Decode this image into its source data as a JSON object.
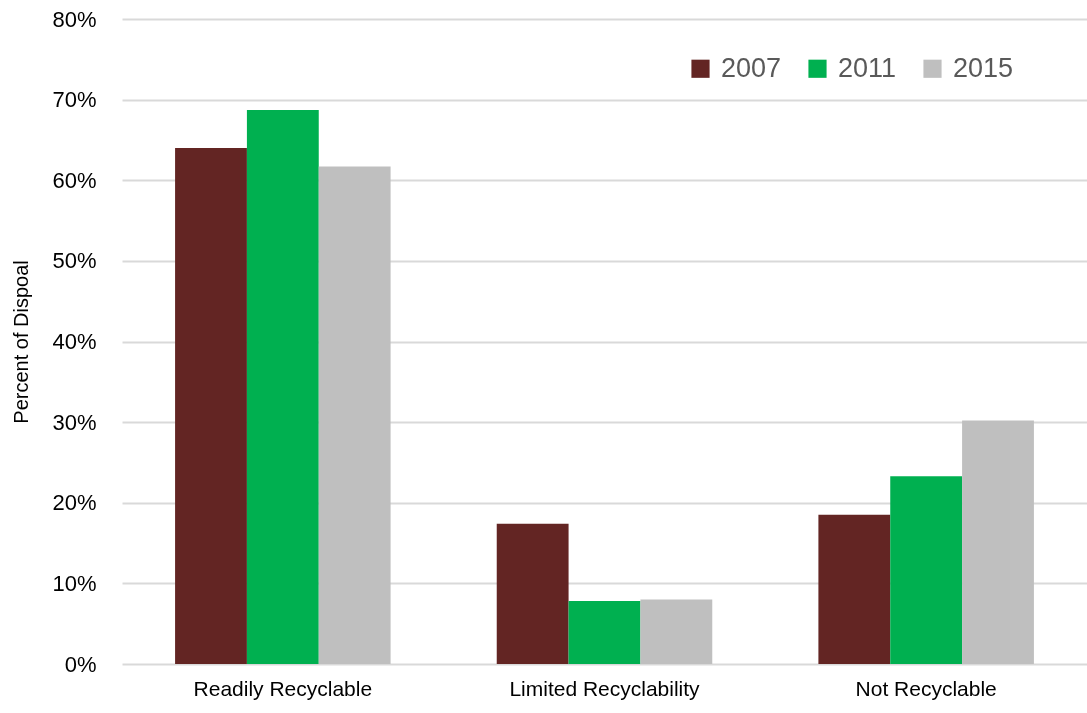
{
  "chart_data": {
    "type": "bar",
    "ylabel": "Percent of Dispoal",
    "categories": [
      "Readily Recyclable",
      "Limited Recyclability",
      "Not Recyclable"
    ],
    "series": [
      {
        "name": "2007",
        "color": "#632523",
        "values": [
          64.0,
          17.4,
          18.5
        ]
      },
      {
        "name": "2011",
        "color": "#00b050",
        "values": [
          68.7,
          7.8,
          23.3
        ]
      },
      {
        "name": "2015",
        "color": "#bfbfbf",
        "values": [
          61.7,
          8.0,
          30.2
        ]
      }
    ],
    "ylim": [
      0,
      80
    ],
    "yticks": [
      {
        "value": 0,
        "label": "0%"
      },
      {
        "value": 10,
        "label": "10%"
      },
      {
        "value": 20,
        "label": "20%"
      },
      {
        "value": 30,
        "label": "30%"
      },
      {
        "value": 40,
        "label": "40%"
      },
      {
        "value": 50,
        "label": "50%"
      },
      {
        "value": 60,
        "label": "60%"
      },
      {
        "value": 70,
        "label": "70%"
      },
      {
        "value": 80,
        "label": "80%"
      }
    ],
    "grid": "y",
    "legend": "top right"
  }
}
